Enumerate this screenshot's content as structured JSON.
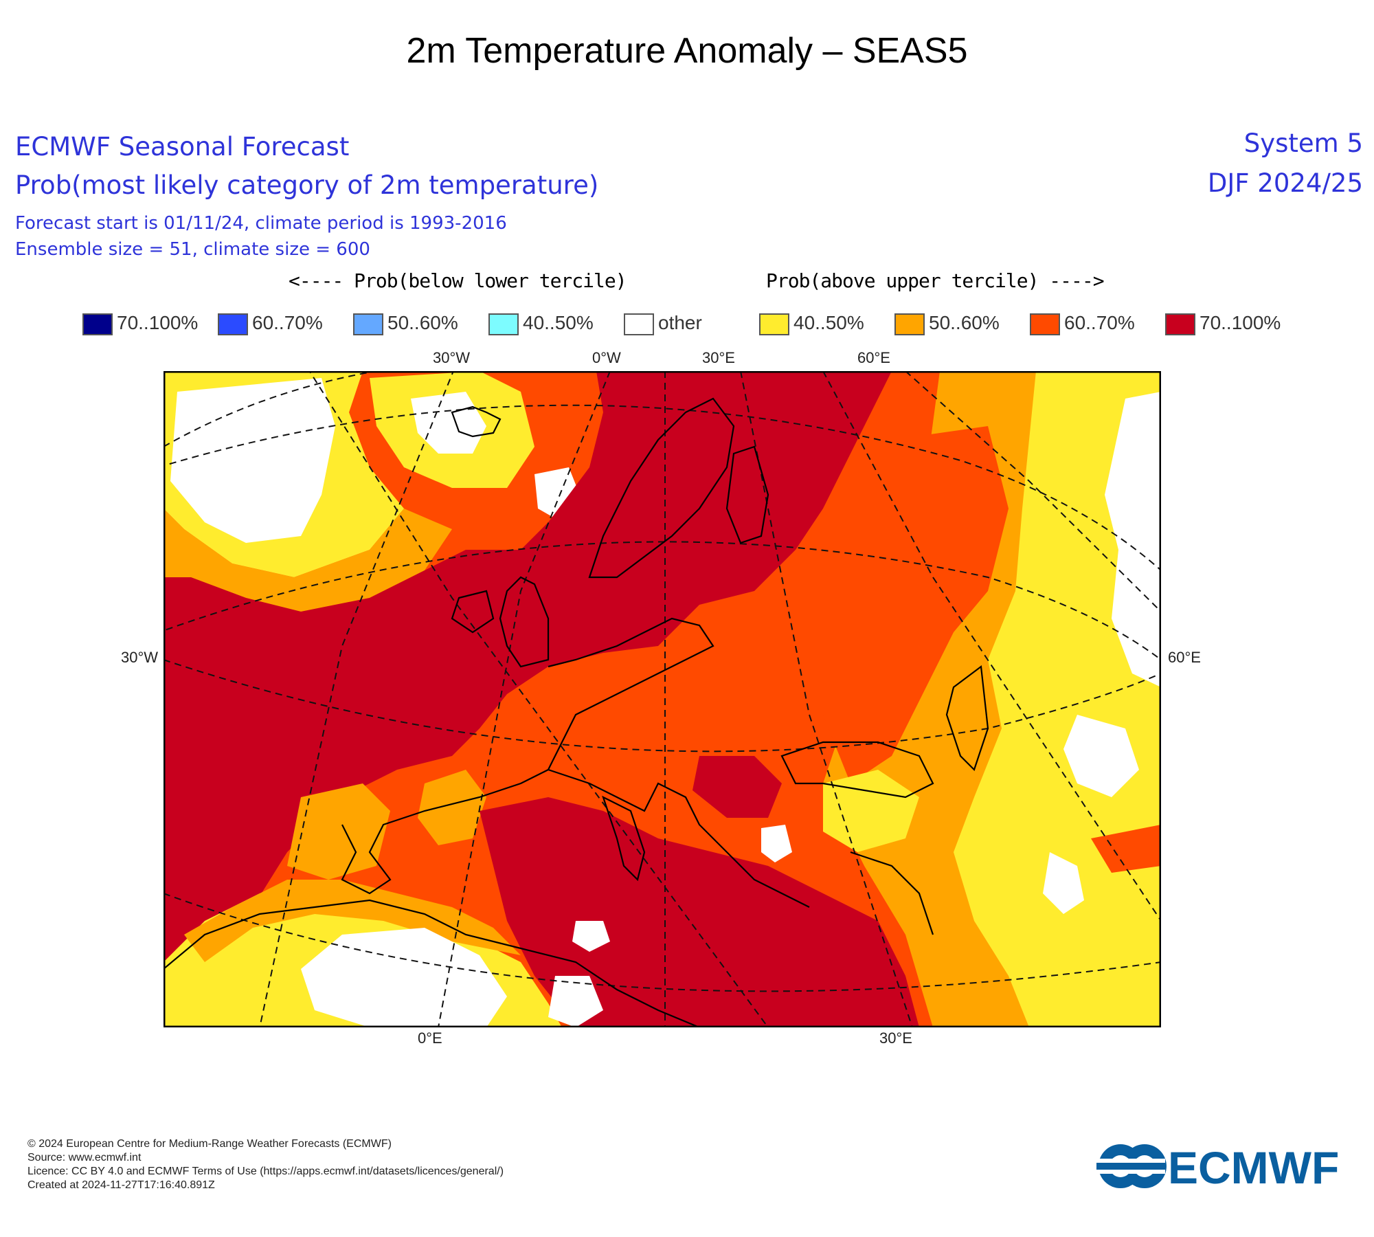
{
  "title": "2m Temperature Anomaly – SEAS5",
  "header": {
    "line1": "ECMWF Seasonal Forecast",
    "line2": "Prob(most likely category of 2m temperature)",
    "line3": "Forecast start is 01/11/24, climate period is 1993-2016",
    "line4": "Ensemble size = 51, climate size = 600",
    "system": "System 5",
    "season": "DJF 2024/25"
  },
  "legend": {
    "below_label": "<---- Prob(below lower tercile)",
    "above_label": "Prob(above upper tercile) ---->",
    "items": [
      {
        "label": "70..100%",
        "color": "#00008b"
      },
      {
        "label": "60..70%",
        "color": "#2b4bff"
      },
      {
        "label": "50..60%",
        "color": "#64a8ff"
      },
      {
        "label": "40..50%",
        "color": "#7dfcff"
      },
      {
        "label": "other",
        "color": "#ffffff"
      },
      {
        "label": "40..50%",
        "color": "#ffec2e"
      },
      {
        "label": "50..60%",
        "color": "#ffa500"
      },
      {
        "label": "60..70%",
        "color": "#ff4a00"
      },
      {
        "label": "70..100%",
        "color": "#c8001e"
      }
    ]
  },
  "map": {
    "ticks_top": [
      "30°W",
      "0°W",
      "30°E",
      "60°E"
    ],
    "ticks_left": [
      "30°W"
    ],
    "ticks_right": [
      "60°E"
    ],
    "ticks_bottom": [
      "0°E",
      "30°E"
    ]
  },
  "footer": {
    "copyright": "© 2024 European Centre for Medium-Range Weather Forecasts (ECMWF)",
    "source": "Source: www.ecmwf.int",
    "licence": "Licence: CC BY 4.0 and ECMWF Terms of Use (https://apps.ecmwf.int/datasets/licences/general/)",
    "created": "Created at 2024-11-27T17:16:40.891Z"
  },
  "logo": {
    "text": "ECMWF",
    "color": "#0a5fa0"
  }
}
